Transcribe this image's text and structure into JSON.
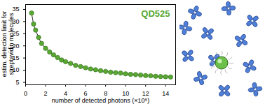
{
  "chart_data": {
    "type": "line",
    "title": "QD525",
    "x_label": "number of detected photons (×10⁵)",
    "y_label": "estim. detection limit for streptavidin molecules",
    "xlim": [
      0,
      15
    ],
    "xticks": [
      0,
      2,
      4,
      6,
      8,
      10,
      12,
      14
    ],
    "ylim": [
      4,
      37
    ],
    "yticks": [
      5,
      10,
      15,
      20,
      25,
      30,
      35
    ],
    "grid": false,
    "series": [
      {
        "name": "QD525",
        "color": "#5aa832",
        "marker": "circle",
        "line_style": "solid",
        "x": [
          0.6,
          0.8,
          1.0,
          1.3,
          1.6,
          2.0,
          2.4,
          2.8,
          3.2,
          3.6,
          4.0,
          4.5,
          5.0,
          5.5,
          6.0,
          6.5,
          7.0,
          7.5,
          8.0,
          8.5,
          9.0,
          9.5,
          10.0,
          10.5,
          11.0,
          11.5,
          12.0,
          12.5,
          13.0,
          13.5,
          14.0,
          14.5
        ],
        "values": [
          33.5,
          29,
          26.5,
          23.5,
          21,
          19,
          17.5,
          16.3,
          15.2,
          14.2,
          13.5,
          12.8,
          12,
          11.5,
          11,
          10.5,
          10.2,
          9.8,
          9.5,
          9.2,
          9,
          8.8,
          8.5,
          8.3,
          8.2,
          8,
          7.8,
          7.7,
          7.5,
          7.4,
          7.3,
          7.2
        ]
      }
    ]
  }
}
